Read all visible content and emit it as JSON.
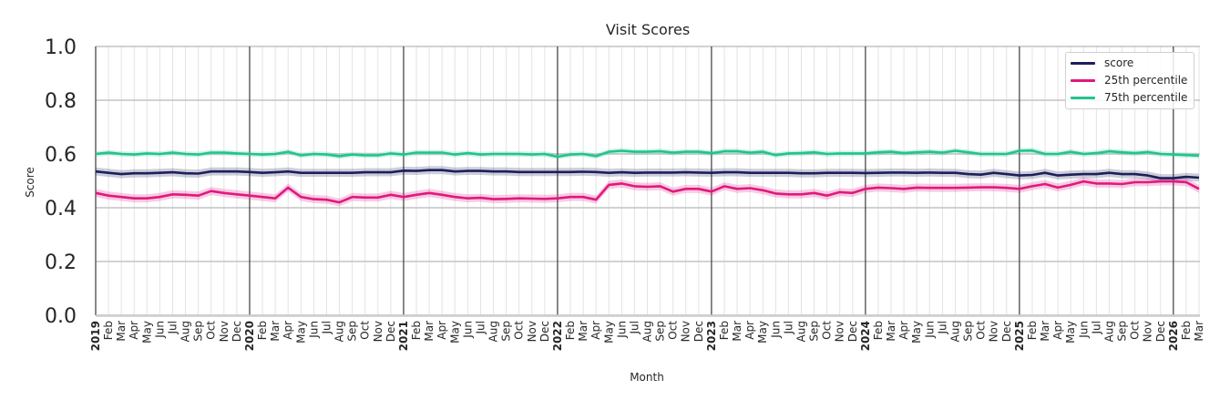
{
  "chart_data": {
    "type": "line",
    "title": "Visit Scores",
    "xlabel": "Month",
    "ylabel": "Score",
    "ylim": [
      0.0,
      1.0
    ],
    "yticks": [
      "0.0",
      "0.2",
      "0.4",
      "0.6",
      "0.8",
      "1.0"
    ],
    "grid": true,
    "legend_position": "upper right",
    "x_start": "2019-01",
    "x_end": "2026-03",
    "x_year_labels": [
      "2019",
      "2020",
      "2021",
      "2022",
      "2023",
      "2024",
      "2025",
      "2026"
    ],
    "x_month_labels": [
      "Feb",
      "Mar",
      "Apr",
      "May",
      "Jun",
      "Jul",
      "Aug",
      "Sep",
      "Oct",
      "Nov",
      "Dec"
    ],
    "series": [
      {
        "name": "score",
        "color": "#1c1f5a",
        "band_color": "#1c1f5a",
        "values": [
          0.535,
          0.53,
          0.525,
          0.528,
          0.528,
          0.53,
          0.532,
          0.528,
          0.527,
          0.535,
          0.535,
          0.535,
          0.533,
          0.53,
          0.532,
          0.535,
          0.53,
          0.53,
          0.53,
          0.53,
          0.53,
          0.532,
          0.532,
          0.532,
          0.538,
          0.537,
          0.54,
          0.54,
          0.535,
          0.537,
          0.537,
          0.535,
          0.535,
          0.533,
          0.533,
          0.533,
          0.533,
          0.533,
          0.534,
          0.533,
          0.53,
          0.532,
          0.53,
          0.531,
          0.531,
          0.531,
          0.532,
          0.531,
          0.53,
          0.532,
          0.532,
          0.53,
          0.53,
          0.53,
          0.53,
          0.528,
          0.528,
          0.53,
          0.53,
          0.53,
          0.529,
          0.53,
          0.531,
          0.531,
          0.53,
          0.531,
          0.53,
          0.53,
          0.525,
          0.523,
          0.53,
          0.525,
          0.52,
          0.522,
          0.53,
          0.52,
          0.523,
          0.525,
          0.525,
          0.53,
          0.525,
          0.525,
          0.52,
          0.51,
          0.51,
          0.515,
          0.512
        ],
        "band_halfwidth": 0.015
      },
      {
        "name": "25th percentile",
        "color": "#e0197f",
        "band_color": "#e0197f",
        "values": [
          0.455,
          0.445,
          0.44,
          0.435,
          0.435,
          0.44,
          0.45,
          0.448,
          0.445,
          0.462,
          0.455,
          0.45,
          0.445,
          0.44,
          0.435,
          0.475,
          0.44,
          0.432,
          0.43,
          0.42,
          0.44,
          0.438,
          0.438,
          0.448,
          0.44,
          0.448,
          0.455,
          0.448,
          0.44,
          0.435,
          0.437,
          0.432,
          0.433,
          0.435,
          0.434,
          0.433,
          0.435,
          0.44,
          0.44,
          0.43,
          0.485,
          0.49,
          0.48,
          0.478,
          0.48,
          0.46,
          0.47,
          0.47,
          0.46,
          0.48,
          0.47,
          0.473,
          0.465,
          0.453,
          0.45,
          0.45,
          0.455,
          0.445,
          0.458,
          0.455,
          0.47,
          0.475,
          0.473,
          0.47,
          0.475,
          0.474,
          0.474,
          0.474,
          0.475,
          0.476,
          0.476,
          0.474,
          0.47,
          0.48,
          0.488,
          0.475,
          0.485,
          0.498,
          0.49,
          0.49,
          0.488,
          0.495,
          0.495,
          0.498,
          0.498,
          0.495,
          0.47
        ],
        "band_halfwidth": 0.015
      },
      {
        "name": "75th percentile",
        "color": "#22c38d",
        "band_color": "#22c38d",
        "values": [
          0.6,
          0.605,
          0.6,
          0.598,
          0.602,
          0.6,
          0.605,
          0.6,
          0.598,
          0.605,
          0.605,
          0.602,
          0.6,
          0.598,
          0.6,
          0.608,
          0.595,
          0.6,
          0.598,
          0.592,
          0.598,
          0.595,
          0.595,
          0.602,
          0.598,
          0.605,
          0.605,
          0.605,
          0.598,
          0.603,
          0.598,
          0.6,
          0.6,
          0.6,
          0.598,
          0.6,
          0.59,
          0.598,
          0.6,
          0.592,
          0.608,
          0.612,
          0.608,
          0.608,
          0.61,
          0.605,
          0.608,
          0.608,
          0.603,
          0.61,
          0.61,
          0.605,
          0.608,
          0.596,
          0.602,
          0.603,
          0.606,
          0.6,
          0.602,
          0.602,
          0.602,
          0.606,
          0.608,
          0.603,
          0.606,
          0.608,
          0.605,
          0.612,
          0.606,
          0.6,
          0.6,
          0.6,
          0.612,
          0.613,
          0.6,
          0.6,
          0.608,
          0.6,
          0.603,
          0.61,
          0.606,
          0.603,
          0.607,
          0.6,
          0.598,
          0.596,
          0.594
        ],
        "band_halfwidth": 0.01
      }
    ]
  }
}
